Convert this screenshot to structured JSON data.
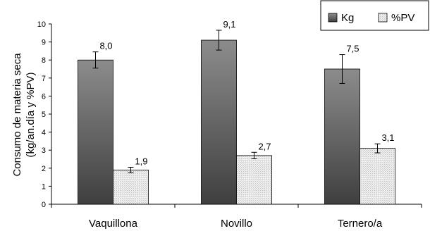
{
  "chart_data": {
    "type": "bar",
    "categories": [
      "Vaquillona",
      "Novillo",
      "Ternero/a"
    ],
    "series": [
      {
        "name": "Kg",
        "values": [
          8.0,
          9.1,
          7.5
        ],
        "value_labels": [
          "8,0",
          "9,1",
          "7,5"
        ],
        "error": [
          0.45,
          0.55,
          0.8
        ],
        "color": "#7a7a7a"
      },
      {
        "name": "%PV",
        "values": [
          1.9,
          2.7,
          3.1
        ],
        "value_labels": [
          "1,9",
          "2,7",
          "3,1"
        ],
        "error": [
          0.15,
          0.18,
          0.25
        ],
        "color": "#e6e6e6"
      }
    ],
    "ylabel_lines": [
      "Consumo de materia seca",
      "(kg/an.día y %PV)"
    ],
    "ylim": [
      0,
      10
    ],
    "yticks": [
      "0",
      "1",
      "2",
      "3",
      "4",
      "5",
      "6",
      "7",
      "8",
      "9",
      "10"
    ],
    "legend_position": "top-right",
    "grid": false
  }
}
